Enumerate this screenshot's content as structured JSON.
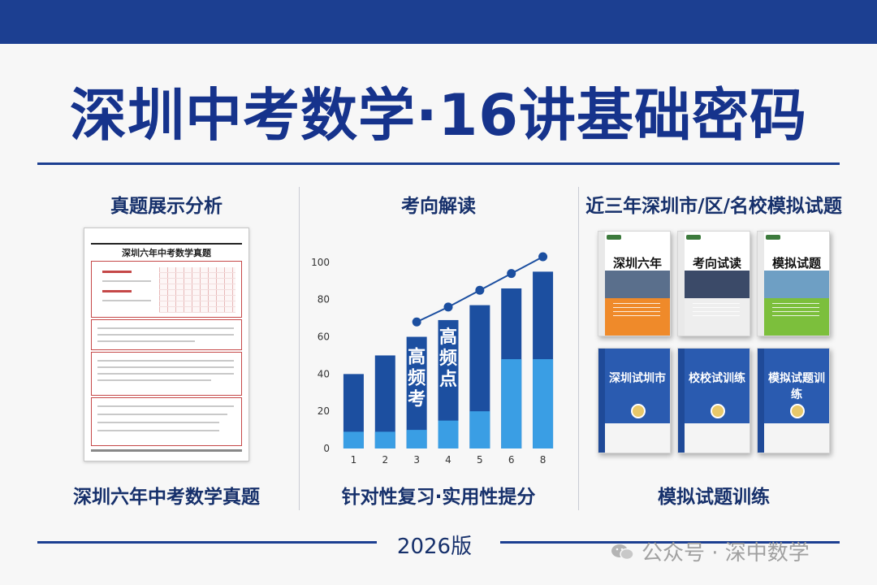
{
  "title": "深圳中考数学·16讲基础密码",
  "columns": [
    {
      "heading": "真题展示分析",
      "caption": "深圳六年中考数学真题"
    },
    {
      "heading": "考向解读",
      "caption": "针对性复习·实用性提分"
    },
    {
      "heading": "近三年深圳市/区/名校模拟试题",
      "caption": "模拟试题训练"
    }
  ],
  "paper": {
    "title": "深圳六年中考数学真题"
  },
  "chart_data": {
    "type": "bar",
    "categories": [
      "1",
      "2",
      "3",
      "4",
      "5",
      "6",
      "8"
    ],
    "series": [
      {
        "values": [
          40,
          50,
          60,
          69,
          77,
          86,
          95
        ],
        "color": "#1c4fa0"
      },
      {
        "values": [
          9,
          9,
          10,
          15,
          20,
          48,
          48
        ],
        "color": "#3a9ee4"
      }
    ],
    "trend_line": {
      "x": [
        "3",
        "4",
        "5",
        "6",
        "8"
      ],
      "values": [
        68,
        76,
        85,
        94,
        103
      ],
      "color": "#1c4fa0"
    },
    "annotations": [
      {
        "category": "3",
        "text": "高频考"
      },
      {
        "category": "4",
        "text": "高频点"
      }
    ],
    "yticks": [
      0,
      20,
      40,
      60,
      80,
      100
    ],
    "ylim": [
      0,
      110
    ],
    "grid": false,
    "xlabel": "",
    "ylabel": ""
  },
  "books_top": [
    {
      "title": "深圳六年",
      "band_color": "#ef8a2a",
      "photo_color": "#5a6f8c"
    },
    {
      "title": "考向试读",
      "band_color": "#eeeeee",
      "photo_color": "#3b4a68"
    },
    {
      "title": "模拟试题",
      "band_color": "#7cbf3c",
      "photo_color": "#6e9fc4"
    }
  ],
  "books_bottom": [
    {
      "title": "深圳试圳市"
    },
    {
      "title": "校校试训练"
    },
    {
      "title": "模拟试题训练"
    }
  ],
  "edition": "2026版",
  "watermark": "公众号 · 深中数学"
}
